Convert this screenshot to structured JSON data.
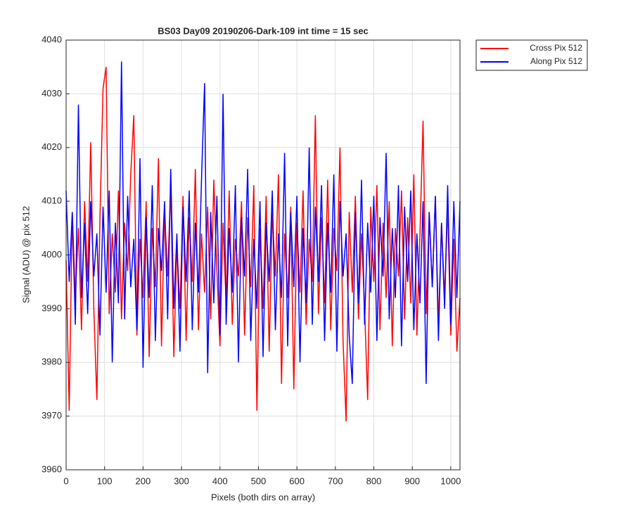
{
  "chart_data": {
    "type": "line",
    "title": "BS03 Day09 20190206-Dark-109 int time = 15 sec",
    "xlabel": "Pixels (both dirs on array)",
    "ylabel": "Signal (ADU) @ pix 512",
    "x": [
      0,
      8,
      16,
      24,
      32,
      40,
      48,
      56,
      64,
      72,
      80,
      88,
      96,
      104,
      112,
      120,
      128,
      136,
      144,
      152,
      160,
      168,
      176,
      184,
      192,
      200,
      208,
      216,
      224,
      232,
      240,
      248,
      256,
      264,
      272,
      280,
      288,
      296,
      304,
      312,
      320,
      328,
      336,
      344,
      352,
      360,
      368,
      376,
      384,
      392,
      400,
      408,
      416,
      424,
      432,
      440,
      448,
      456,
      464,
      472,
      480,
      488,
      496,
      504,
      512,
      520,
      528,
      536,
      544,
      552,
      560,
      568,
      576,
      584,
      592,
      600,
      608,
      616,
      624,
      632,
      640,
      648,
      656,
      664,
      672,
      680,
      688,
      696,
      704,
      712,
      720,
      728,
      736,
      744,
      752,
      760,
      768,
      776,
      784,
      792,
      800,
      808,
      816,
      824,
      832,
      840,
      848,
      856,
      864,
      872,
      880,
      888,
      896,
      904,
      912,
      920,
      928,
      936,
      944,
      952,
      960,
      968,
      976,
      984,
      992,
      1000,
      1008,
      1016,
      1024
    ],
    "series": [
      {
        "name": "Cross Pix 512",
        "color": "#ff0000",
        "values": [
          3999,
          3971,
          4008,
          3992,
          4005,
          3986,
          4010,
          3995,
          4021,
          3990,
          3973,
          4007,
          4031,
          4035,
          3989,
          4004,
          3993,
          4012,
          3988,
          4006,
          3997,
          4015,
          4026,
          3985,
          4003,
          3992,
          4010,
          3981,
          4005,
          3994,
          4018,
          3983,
          4008,
          3996,
          4013,
          3981,
          4002,
          3990,
          4011,
          3984,
          4007,
          3995,
          4016,
          3986,
          4004,
          3993,
          4009,
          3988,
          4014,
          3997,
          3983,
          4006,
          3991,
          4012,
          3987,
          4003,
          3996,
          4010,
          3985,
          4007,
          3994,
          4013,
          3971,
          4005,
          3990,
          4011,
          3982,
          4008,
          3996,
          4015,
          3976,
          4004,
          3992,
          4009,
          3975,
          4006,
          3993,
          4012,
          3987,
          4003,
          3995,
          4026,
          3989,
          4007,
          3991,
          4014,
          3986,
          4005,
          3997,
          4020,
          3984,
          3969,
          4008,
          3993,
          4011,
          3988,
          4004,
          3990,
          3973,
          4009,
          3995,
          4013,
          3986,
          4006,
          3992,
          4010,
          3983,
          4005,
          3996,
          4012,
          3988,
          4007,
          3991,
          4015,
          3985,
          4004,
          4025,
          3989,
          4008,
          3994,
          4011,
          3987,
          4006,
          3992,
          4009,
          3985,
          4003,
          3982,
          3992
        ]
      },
      {
        "name": "Along Pix 512",
        "color": "#0000ff",
        "values": [
          4012,
          3995,
          4008,
          3987,
          4028,
          3992,
          4006,
          3989,
          4010,
          3996,
          4004,
          3985,
          4009,
          3993,
          4012,
          3980,
          4006,
          3991,
          4036,
          3988,
          4011,
          3994,
          4003,
          3986,
          4018,
          3979,
          4007,
          3992,
          4013,
          3984,
          4005,
          3997,
          4010,
          3988,
          4016,
          3990,
          4004,
          3982,
          4009,
          3995,
          4012,
          3986,
          4006,
          3993,
          4014,
          4032,
          3978,
          4008,
          3991,
          4011,
          3985,
          4030,
          3987,
          4005,
          3993,
          4013,
          3980,
          4007,
          3996,
          4016,
          3984,
          4003,
          3990,
          4010,
          3981,
          4006,
          3995,
          4012,
          3986,
          4004,
          3992,
          4019,
          3983,
          4008,
          3994,
          4011,
          3980,
          4005,
          3991,
          4020,
          3987,
          4009,
          3995,
          4013,
          3984,
          4006,
          3993,
          4015,
          3982,
          4010,
          3996,
          4004,
          3985,
          3976,
          4008,
          3991,
          4014,
          3987,
          4006,
          3993,
          4011,
          3984,
          4007,
          3996,
          4019,
          3988,
          4005,
          3992,
          4013,
          3983,
          4009,
          3995,
          4012,
          3986,
          4004,
          3991,
          4010,
          3976,
          4008,
          3994,
          4011,
          3984,
          4006,
          3990,
          4013,
          3987,
          4010,
          3992,
          4010
        ]
      }
    ],
    "xlim": [
      0,
      1024
    ],
    "xticks": [
      0,
      100,
      200,
      300,
      400,
      500,
      600,
      700,
      800,
      900,
      1000
    ],
    "ylim": [
      3960,
      4040
    ],
    "yticks": [
      3960,
      3970,
      3980,
      3990,
      4000,
      4010,
      4020,
      4030,
      4040
    ],
    "grid": true,
    "legend": "outside-right"
  }
}
